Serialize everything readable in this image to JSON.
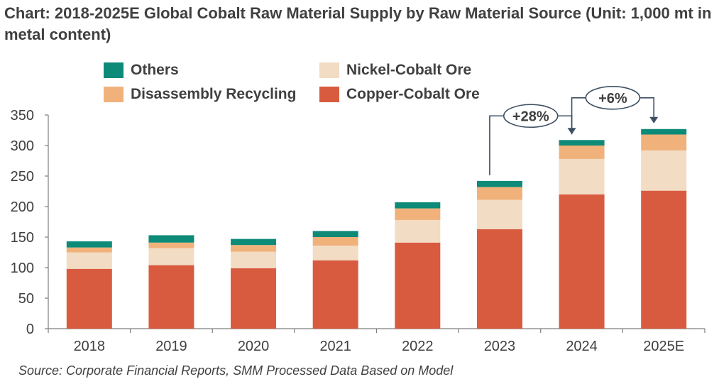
{
  "chart_data": {
    "type": "bar",
    "stacked": true,
    "title": "Chart: 2018-2025E Global Cobalt Raw Material Supply by Raw Material Source (Unit: 1,000 mt in metal content)",
    "categories": [
      "2018",
      "2019",
      "2020",
      "2021",
      "2022",
      "2023",
      "2024",
      "2025E"
    ],
    "series": [
      {
        "name": "Copper-Cobalt Ore",
        "color": "#d95b3f",
        "values": [
          98,
          104,
          99,
          112,
          141,
          163,
          220,
          226
        ]
      },
      {
        "name": "Nickel-Cobalt Ore",
        "color": "#f2dcc4",
        "values": [
          27,
          28,
          27,
          24,
          37,
          48,
          58,
          66
        ]
      },
      {
        "name": "Disassembly Recycling",
        "color": "#f0b27a",
        "values": [
          8,
          9,
          11,
          14,
          19,
          21,
          22,
          26
        ]
      },
      {
        "name": "Others",
        "color": "#0e8a78",
        "values": [
          10,
          12,
          10,
          10,
          10,
          10,
          9,
          9
        ]
      }
    ],
    "ylim": [
      0,
      350
    ],
    "yticks": [
      0,
      50,
      100,
      150,
      200,
      250,
      300,
      350
    ],
    "legend_position": "top",
    "annotations": [
      {
        "text": "+28%",
        "from": "2023",
        "to": "2024"
      },
      {
        "text": "+6%",
        "from": "2024",
        "to": "2025E"
      }
    ]
  },
  "source": "Source: Corporate Financial Reports, SMM Processed Data Based on Model"
}
